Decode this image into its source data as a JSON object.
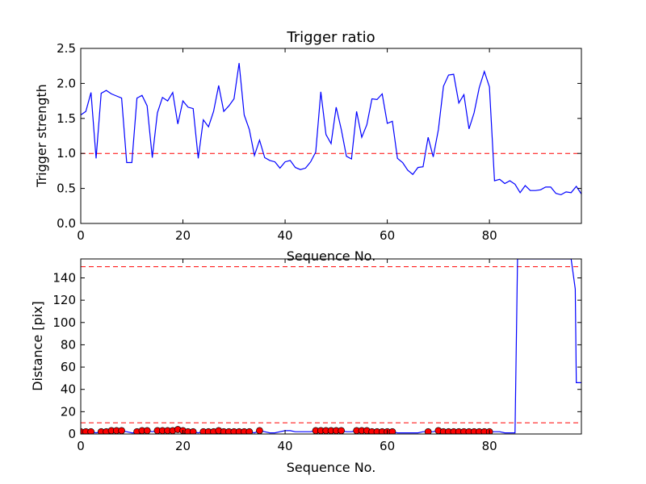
{
  "chart_data": [
    {
      "type": "line",
      "title": "Trigger ratio",
      "xlabel": "Sequence No.",
      "ylabel": "Trigger strength",
      "xlim": [
        0,
        98
      ],
      "ylim": [
        0,
        2.5
      ],
      "xticks": [
        0,
        20,
        40,
        60,
        80
      ],
      "yticks": [
        0.0,
        0.5,
        1.0,
        1.5,
        2.0,
        2.5
      ],
      "ytick_labels": [
        "0.0",
        "0.5",
        "1.0",
        "1.5",
        "2.0",
        "2.5"
      ],
      "grid": false,
      "series": [
        {
          "color": "#0000ff",
          "x": [
            0,
            1,
            2,
            3,
            4,
            5,
            6,
            7,
            8,
            9,
            10,
            11,
            12,
            13,
            14,
            15,
            16,
            17,
            18,
            19,
            20,
            21,
            22,
            23,
            24,
            25,
            26,
            27,
            28,
            29,
            30,
            31,
            32,
            33,
            34,
            35,
            36,
            37,
            38,
            39,
            40,
            41,
            42,
            43,
            44,
            45,
            46,
            47,
            48,
            49,
            50,
            51,
            52,
            53,
            54,
            55,
            56,
            57,
            58,
            59,
            60,
            61,
            62,
            63,
            64,
            65,
            66,
            67,
            68,
            69,
            70,
            71,
            72,
            73,
            74,
            75,
            76,
            77,
            78,
            79,
            80,
            81,
            82,
            83,
            84,
            85,
            86,
            87,
            88,
            89,
            90,
            91,
            92,
            93,
            94,
            95,
            96,
            97,
            98
          ],
          "y": [
            1.55,
            1.6,
            1.87,
            0.93,
            1.86,
            1.9,
            1.85,
            1.82,
            1.79,
            0.87,
            0.87,
            1.79,
            1.83,
            1.68,
            0.94,
            1.58,
            1.8,
            1.75,
            1.87,
            1.42,
            1.75,
            1.66,
            1.64,
            0.93,
            1.48,
            1.38,
            1.6,
            1.97,
            1.6,
            1.68,
            1.78,
            2.29,
            1.55,
            1.34,
            0.97,
            1.19,
            0.94,
            0.9,
            0.88,
            0.79,
            0.88,
            0.9,
            0.8,
            0.77,
            0.79,
            0.88,
            1.02,
            1.88,
            1.27,
            1.14,
            1.66,
            1.34,
            0.96,
            0.92,
            1.6,
            1.23,
            1.41,
            1.78,
            1.77,
            1.85,
            1.43,
            1.46,
            0.93,
            0.87,
            0.76,
            0.7,
            0.8,
            0.81,
            1.23,
            0.95,
            1.34,
            1.96,
            2.12,
            2.13,
            1.72,
            1.84,
            1.35,
            1.58,
            1.94,
            2.17,
            1.95,
            0.61,
            0.63,
            0.57,
            0.61,
            0.56,
            0.44,
            0.54,
            0.47,
            0.47,
            0.48,
            0.52,
            0.52,
            0.43,
            0.41,
            0.45,
            0.44,
            0.53,
            0.42
          ]
        }
      ],
      "hlines": [
        {
          "y": 1.0,
          "color": "#ff0000",
          "style": "dashed"
        }
      ]
    },
    {
      "type": "line",
      "xlabel": "Sequence No.",
      "ylabel": "Distance [pix]",
      "xlim": [
        0,
        98
      ],
      "ylim": [
        0,
        157
      ],
      "xticks": [
        0,
        20,
        40,
        60,
        80
      ],
      "yticks": [
        0,
        20,
        40,
        60,
        80,
        100,
        120,
        140
      ],
      "ytick_labels": [
        "0",
        "20",
        "40",
        "60",
        "80",
        "100",
        "120",
        "140"
      ],
      "grid": false,
      "series": [
        {
          "color": "#0000ff",
          "x": [
            0,
            1,
            2,
            3,
            4,
            5,
            6,
            7,
            8,
            9,
            10,
            11,
            12,
            13,
            14,
            15,
            16,
            17,
            18,
            19,
            20,
            21,
            22,
            23,
            24,
            25,
            26,
            27,
            28,
            29,
            30,
            31,
            32,
            33,
            34,
            35,
            36,
            37,
            38,
            39,
            40,
            41,
            42,
            43,
            44,
            45,
            46,
            47,
            48,
            49,
            50,
            51,
            52,
            53,
            54,
            55,
            56,
            57,
            58,
            59,
            60,
            61,
            62,
            63,
            64,
            65,
            66,
            67,
            68,
            69,
            70,
            71,
            72,
            73,
            74,
            75,
            76,
            77,
            78,
            79,
            80,
            81,
            82,
            83,
            84,
            85,
            85.5,
            96,
            96.8,
            97,
            98
          ],
          "y": [
            2,
            2,
            2,
            1,
            2,
            2,
            3,
            3,
            3,
            2,
            1,
            1,
            3,
            3,
            2,
            3,
            3,
            3,
            3,
            4,
            3,
            2,
            2,
            1,
            2,
            2,
            2,
            3,
            2,
            2,
            2,
            2,
            2,
            2,
            1,
            3,
            2,
            1,
            1,
            2,
            3,
            3,
            2,
            2,
            2,
            2,
            3,
            3,
            3,
            3,
            3,
            3,
            2,
            2,
            3,
            3,
            3,
            2,
            2,
            2,
            2,
            2,
            1,
            1,
            1,
            1,
            1,
            2,
            2,
            2,
            3,
            3,
            2,
            2,
            2,
            2,
            2,
            2,
            2,
            2,
            2,
            2,
            2,
            1,
            1,
            1,
            157,
            157,
            130,
            46,
            46
          ]
        }
      ],
      "markers": {
        "color": "#ff0000",
        "shape": "circle",
        "x": [
          0,
          1,
          2,
          4,
          5,
          6,
          7,
          8,
          11,
          12,
          13,
          15,
          16,
          17,
          18,
          19,
          20,
          21,
          22,
          24,
          25,
          26,
          27,
          28,
          29,
          30,
          31,
          32,
          33,
          35,
          46,
          47,
          48,
          49,
          50,
          51,
          54,
          55,
          56,
          57,
          58,
          59,
          60,
          61,
          68,
          70,
          71,
          72,
          73,
          74,
          75,
          76,
          77,
          78,
          79,
          80
        ],
        "y": [
          2,
          2,
          2,
          2,
          2,
          3,
          3,
          3,
          2,
          3,
          3,
          3,
          3,
          3,
          3,
          4,
          3,
          2,
          2,
          2,
          2,
          2,
          3,
          2,
          2,
          2,
          2,
          2,
          2,
          3,
          3,
          3,
          3,
          3,
          3,
          3,
          3,
          3,
          3,
          2,
          2,
          2,
          2,
          2,
          2,
          3,
          2,
          2,
          2,
          2,
          2,
          2,
          2,
          2,
          2,
          2
        ]
      },
      "hlines": [
        {
          "y": 10,
          "color": "#ff0000",
          "style": "dashed"
        },
        {
          "y": 150,
          "color": "#ff0000",
          "style": "dashed"
        }
      ]
    }
  ]
}
